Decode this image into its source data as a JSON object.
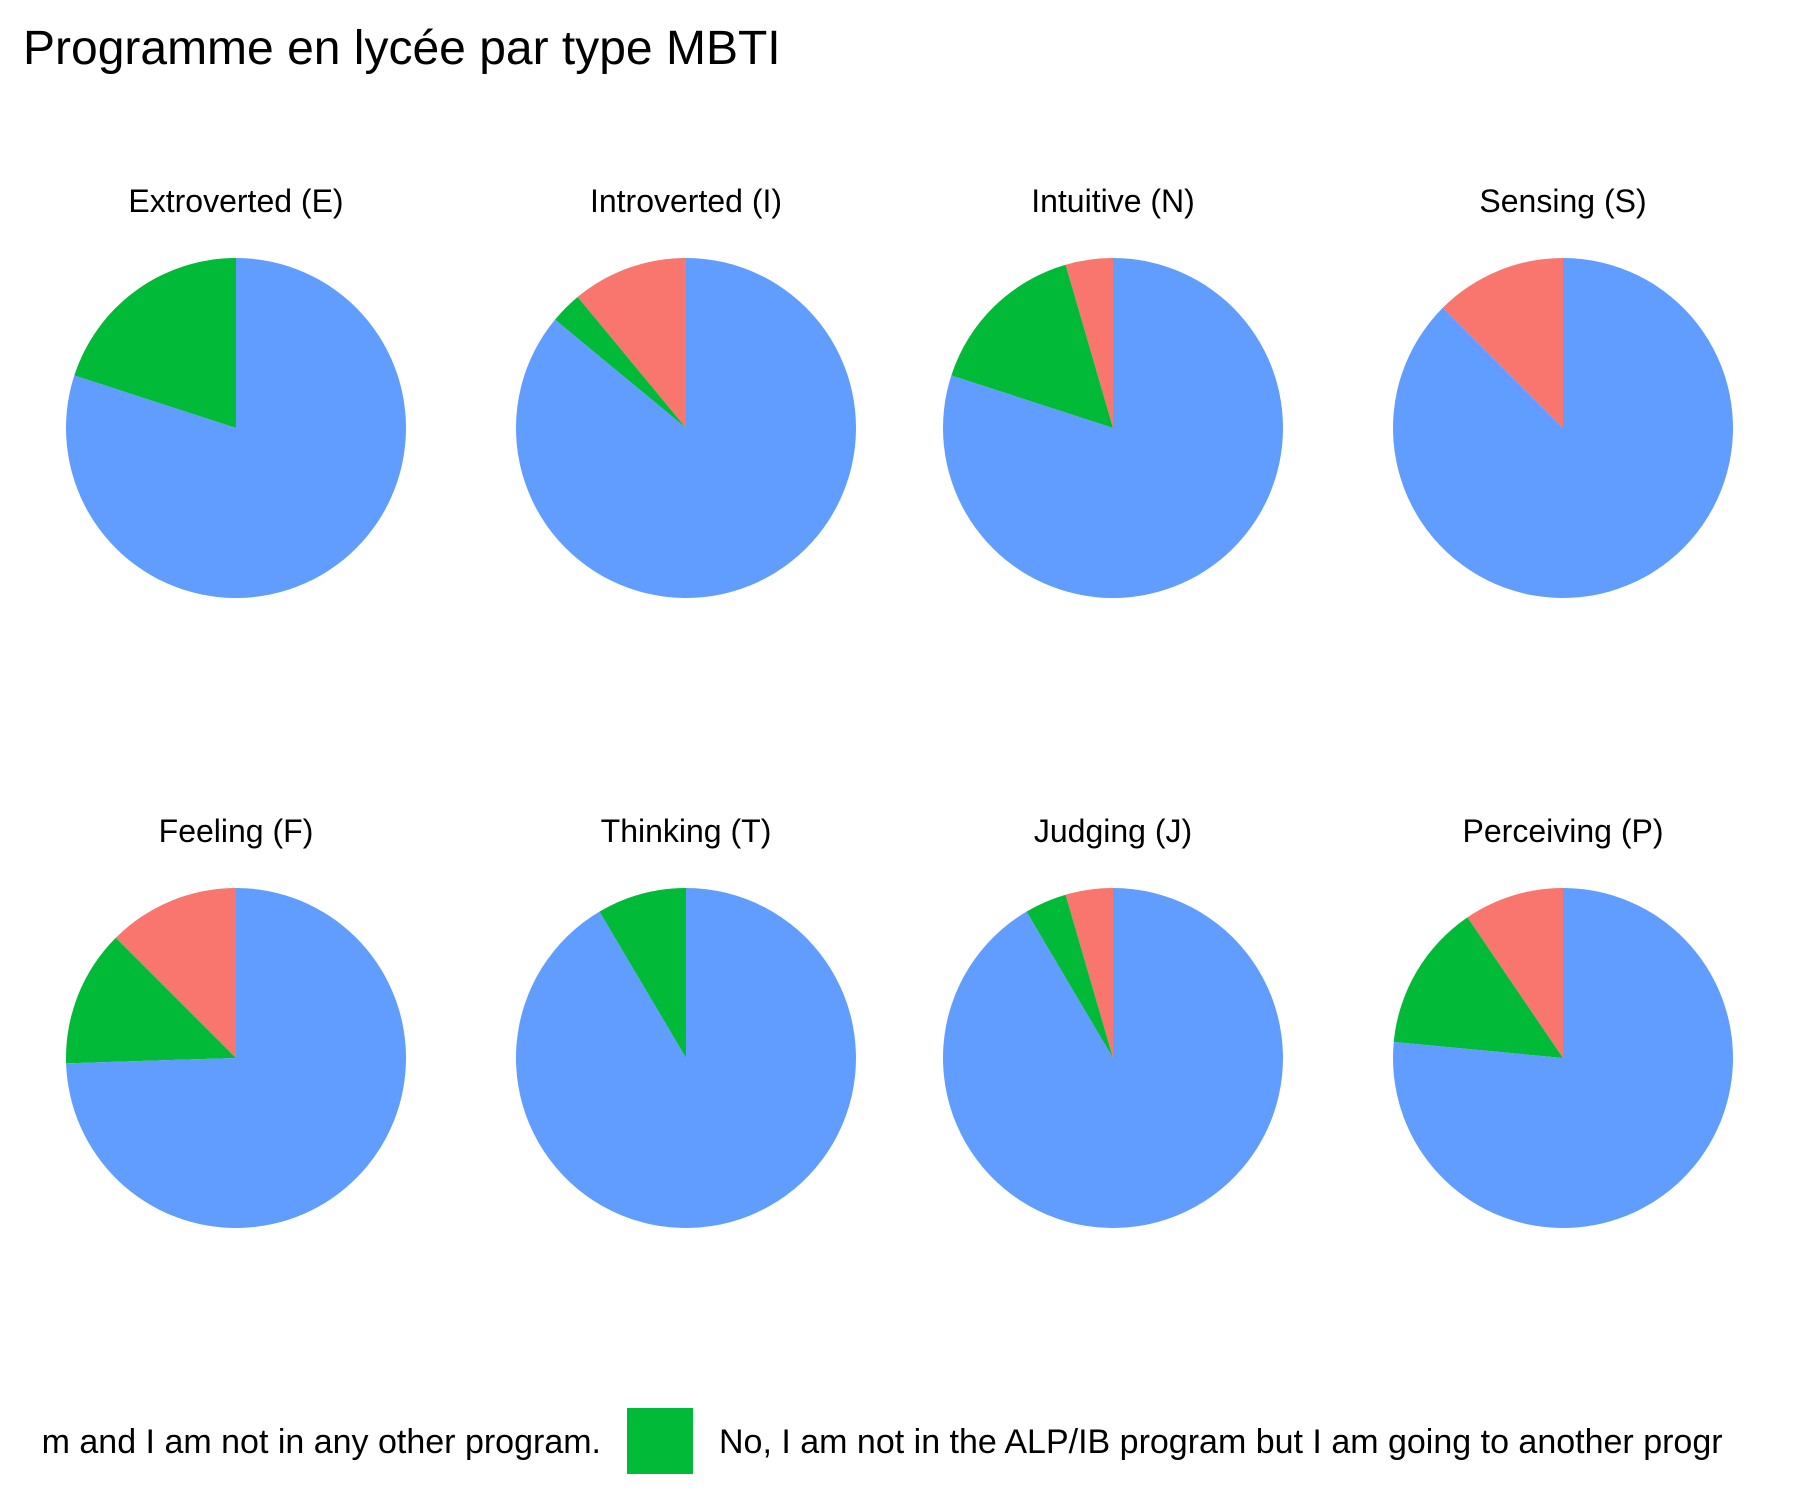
{
  "chart_data": {
    "type": "pie",
    "title": "Programme en lycée par type MBTI",
    "colors": {
      "red": "#F8766D",
      "green": "#00BA38",
      "blue": "#619CFF"
    },
    "facets": [
      {
        "label": "Extroverted (E)",
        "slices": [
          0.0,
          0.2,
          0.8
        ]
      },
      {
        "label": "Introverted (I)",
        "slices": [
          0.11,
          0.03,
          0.86
        ]
      },
      {
        "label": "Intuitive (N)",
        "slices": [
          0.045,
          0.155,
          0.8
        ]
      },
      {
        "label": "Sensing (S)",
        "slices": [
          0.125,
          0.0,
          0.875
        ]
      },
      {
        "label": "Feeling (F)",
        "slices": [
          0.125,
          0.13,
          0.745
        ]
      },
      {
        "label": "Thinking (T)",
        "slices": [
          0.0,
          0.085,
          0.915
        ]
      },
      {
        "label": "Judging (J)",
        "slices": [
          0.045,
          0.04,
          0.915
        ]
      },
      {
        "label": "Perceiving (P)",
        "slices": [
          0.095,
          0.14,
          0.765
        ]
      }
    ],
    "legend": {
      "position": "bottom",
      "items": [
        {
          "label": "m and I am not in any other program.",
          "color": "#619CFF",
          "swatch": false
        },
        {
          "label": "No, I am not in the ALP/IB program but I am going to another progr",
          "color": "#00BA38",
          "swatch": true
        }
      ]
    }
  }
}
